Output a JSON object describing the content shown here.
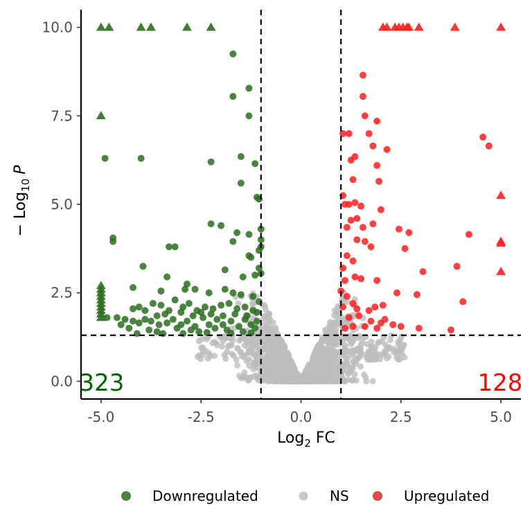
{
  "chart_data": {
    "type": "scatter",
    "title": "",
    "xlabel": {
      "base": "Log",
      "sub": "2",
      "rest": " FC"
    },
    "ylabel": {
      "prefix": "− Log",
      "sub": "10",
      "var": "P"
    },
    "xlim": [
      -5.5,
      5.5
    ],
    "ylim": [
      -0.5,
      10.5
    ],
    "xticks": [
      -5.0,
      -2.5,
      0.0,
      2.5,
      5.0
    ],
    "xtick_labels": [
      "-5.0",
      "-2.5",
      "0.0",
      "2.5",
      "5.0"
    ],
    "yticks": [
      0.0,
      2.5,
      5.0,
      7.5,
      10.0
    ],
    "ytick_labels": [
      "0.0",
      "2.5",
      "5.0",
      "7.5",
      "10.0"
    ],
    "grid": false,
    "thresholds": {
      "x": [
        -1,
        1
      ],
      "y": 1.3
    },
    "counts": {
      "down": "323",
      "up": "128"
    },
    "colors": {
      "Downregulated": "#2a6e1f",
      "NS": "#bdbdbd",
      "Upregulated": "#ff2020"
    },
    "legend": {
      "placement": "bottom",
      "items": [
        "Downregulated",
        "NS",
        "Upregulated"
      ]
    },
    "series": [
      {
        "name": "Downregulated",
        "capped_points": [
          [
            -5.0,
            10.0
          ],
          [
            -4.8,
            10.0
          ],
          [
            -4.0,
            10.0
          ],
          [
            -3.75,
            10.0
          ],
          [
            -2.85,
            10.0
          ],
          [
            -2.25,
            10.0
          ],
          [
            -5.0,
            7.5
          ],
          [
            -5.0,
            2.7
          ],
          [
            -5.0,
            2.6
          ],
          [
            -5.0,
            2.5
          ],
          [
            -5.0,
            2.4
          ],
          [
            -5.0,
            2.3
          ],
          [
            -5.0,
            2.2
          ],
          [
            -5.0,
            2.1
          ],
          [
            -5.0,
            2.0
          ],
          [
            -5.0,
            1.9
          ],
          [
            -5.0,
            1.8
          ]
        ],
        "points": [
          [
            -1.7,
            9.25
          ],
          [
            -1.7,
            8.05
          ],
          [
            -1.3,
            8.28
          ],
          [
            -1.3,
            7.5
          ],
          [
            -4.9,
            6.3
          ],
          [
            -4.0,
            6.3
          ],
          [
            -2.25,
            6.2
          ],
          [
            -1.5,
            6.35
          ],
          [
            -1.15,
            6.15
          ],
          [
            -1.5,
            5.6
          ],
          [
            -1.1,
            5.2
          ],
          [
            -1.05,
            5.15
          ],
          [
            -2.25,
            4.45
          ],
          [
            -2.0,
            4.4
          ],
          [
            -1.6,
            4.2
          ],
          [
            -1.3,
            4.15
          ],
          [
            -1.7,
            3.95
          ],
          [
            -1.0,
            4.3
          ],
          [
            -1.0,
            4.0
          ],
          [
            -1.0,
            3.8
          ],
          [
            -1.05,
            3.7
          ],
          [
            -4.7,
            4.05
          ],
          [
            -4.7,
            3.95
          ],
          [
            -3.3,
            3.8
          ],
          [
            -3.15,
            3.8
          ],
          [
            -3.95,
            3.25
          ],
          [
            -1.3,
            3.55
          ],
          [
            -1.25,
            3.5
          ],
          [
            -1.05,
            3.2
          ],
          [
            -1.9,
            3.15
          ],
          [
            -1.0,
            3.05
          ],
          [
            -3.35,
            2.95
          ],
          [
            -1.15,
            3.0
          ],
          [
            -1.45,
            2.95
          ],
          [
            -4.2,
            2.65
          ],
          [
            -3.5,
            2.55
          ],
          [
            -2.85,
            2.75
          ],
          [
            -2.9,
            2.6
          ],
          [
            -2.65,
            2.6
          ],
          [
            -2.3,
            2.5
          ],
          [
            -1.9,
            2.6
          ],
          [
            -1.7,
            2.5
          ],
          [
            -1.5,
            2.45
          ],
          [
            -1.2,
            2.4
          ],
          [
            -3.7,
            2.2
          ],
          [
            -3.5,
            2.15
          ],
          [
            -3.3,
            2.0
          ],
          [
            -3.15,
            2.3
          ],
          [
            -2.95,
            2.1
          ],
          [
            -2.8,
            2.2
          ],
          [
            -2.6,
            2.0
          ],
          [
            -2.4,
            2.1
          ],
          [
            -2.2,
            2.05
          ],
          [
            -2.0,
            2.15
          ],
          [
            -1.8,
            2.2
          ],
          [
            -1.6,
            2.05
          ],
          [
            -1.4,
            2.1
          ],
          [
            -1.2,
            2.0
          ],
          [
            -1.05,
            2.25
          ],
          [
            -4.6,
            1.8
          ],
          [
            -4.4,
            1.75
          ],
          [
            -4.2,
            1.7
          ],
          [
            -4.05,
            1.65
          ],
          [
            -3.9,
            1.75
          ],
          [
            -3.75,
            1.7
          ],
          [
            -3.55,
            1.6
          ],
          [
            -3.35,
            1.65
          ],
          [
            -3.2,
            1.75
          ],
          [
            -3.0,
            1.6
          ],
          [
            -2.85,
            1.7
          ],
          [
            -2.65,
            1.55
          ],
          [
            -2.45,
            1.8
          ],
          [
            -2.3,
            1.6
          ],
          [
            -2.1,
            1.75
          ],
          [
            -1.95,
            1.6
          ],
          [
            -1.75,
            1.7
          ],
          [
            -1.55,
            1.55
          ],
          [
            -1.4,
            1.75
          ],
          [
            -1.25,
            1.6
          ],
          [
            -1.1,
            1.7
          ],
          [
            -4.3,
            1.5
          ],
          [
            -3.8,
            1.45
          ],
          [
            -3.6,
            1.4
          ],
          [
            -3.1,
            1.5
          ],
          [
            -2.75,
            1.45
          ],
          [
            -2.55,
            1.4
          ],
          [
            -2.15,
            1.5
          ],
          [
            -1.85,
            1.45
          ],
          [
            -1.45,
            1.4
          ],
          [
            -1.15,
            1.5
          ],
          [
            -4.85,
            1.8
          ],
          [
            -4.5,
            1.6
          ],
          [
            -4.2,
            2.05
          ],
          [
            -4.05,
            2.1
          ],
          [
            -3.9,
            2.0
          ],
          [
            -3.6,
            1.85
          ],
          [
            -3.4,
            1.9
          ],
          [
            -3.0,
            1.95
          ],
          [
            -2.7,
            1.85
          ],
          [
            -2.5,
            1.95
          ],
          [
            -2.25,
            1.9
          ],
          [
            -1.95,
            1.85
          ],
          [
            -1.65,
            1.9
          ],
          [
            -1.35,
            1.85
          ],
          [
            -1.1,
            1.95
          ],
          [
            -3.45,
            1.35
          ],
          [
            -2.95,
            1.35
          ],
          [
            -2.35,
            1.38
          ],
          [
            -1.75,
            1.36
          ],
          [
            -1.25,
            1.37
          ],
          [
            -4.1,
            1.35
          ]
        ]
      },
      {
        "name": "NS",
        "points": []
      },
      {
        "name": "Upregulated",
        "capped_points": [
          [
            2.05,
            10.0
          ],
          [
            2.15,
            10.0
          ],
          [
            2.35,
            10.0
          ],
          [
            2.45,
            10.0
          ],
          [
            2.55,
            10.0
          ],
          [
            2.65,
            10.0
          ],
          [
            2.7,
            10.0
          ],
          [
            2.95,
            10.0
          ],
          [
            3.85,
            10.0
          ],
          [
            5.0,
            10.0
          ],
          [
            5.0,
            5.25
          ],
          [
            5.0,
            3.95
          ],
          [
            5.0,
            3.9
          ],
          [
            5.0,
            3.1
          ]
        ],
        "points": [
          [
            1.55,
            8.65
          ],
          [
            1.55,
            8.05
          ],
          [
            1.6,
            7.5
          ],
          [
            1.9,
            7.35
          ],
          [
            1.05,
            7.0
          ],
          [
            1.2,
            7.0
          ],
          [
            1.7,
            7.0
          ],
          [
            1.8,
            6.65
          ],
          [
            2.15,
            6.55
          ],
          [
            4.55,
            6.9
          ],
          [
            4.7,
            6.65
          ],
          [
            1.25,
            6.25
          ],
          [
            1.35,
            6.35
          ],
          [
            1.9,
            6.1
          ],
          [
            1.3,
            5.7
          ],
          [
            1.95,
            5.65
          ],
          [
            1.05,
            5.25
          ],
          [
            1.1,
            5.0
          ],
          [
            1.2,
            5.0
          ],
          [
            1.35,
            5.05
          ],
          [
            1.5,
            4.95
          ],
          [
            2.0,
            4.85
          ],
          [
            1.25,
            4.55
          ],
          [
            1.4,
            4.6
          ],
          [
            1.15,
            4.35
          ],
          [
            1.55,
            4.35
          ],
          [
            1.8,
            4.45
          ],
          [
            2.45,
            4.3
          ],
          [
            2.7,
            4.2
          ],
          [
            1.4,
            4.0
          ],
          [
            1.6,
            3.95
          ],
          [
            1.75,
            3.8
          ],
          [
            2.6,
            3.75
          ],
          [
            4.2,
            4.15
          ],
          [
            1.15,
            3.55
          ],
          [
            1.3,
            3.4
          ],
          [
            1.05,
            3.2
          ],
          [
            3.9,
            3.25
          ],
          [
            3.05,
            3.1
          ],
          [
            1.1,
            2.85
          ],
          [
            1.35,
            2.95
          ],
          [
            1.5,
            2.9
          ],
          [
            1.9,
            2.85
          ],
          [
            2.4,
            2.5
          ],
          [
            2.9,
            2.45
          ],
          [
            4.05,
            2.25
          ],
          [
            1.0,
            2.55
          ],
          [
            1.15,
            2.4
          ],
          [
            1.3,
            2.2
          ],
          [
            1.05,
            2.1
          ],
          [
            1.4,
            2.05
          ],
          [
            1.7,
            2.0
          ],
          [
            1.85,
            2.1
          ],
          [
            2.05,
            2.15
          ],
          [
            1.2,
            1.8
          ],
          [
            1.45,
            1.85
          ],
          [
            2.1,
            1.75
          ],
          [
            2.3,
            1.6
          ],
          [
            1.1,
            1.5
          ],
          [
            1.3,
            1.55
          ],
          [
            1.6,
            1.55
          ],
          [
            1.9,
            1.5
          ],
          [
            2.5,
            1.55
          ],
          [
            2.95,
            1.5
          ],
          [
            3.75,
            1.45
          ],
          [
            1.75,
            1.7
          ],
          [
            2.0,
            1.65
          ]
        ]
      }
    ]
  }
}
